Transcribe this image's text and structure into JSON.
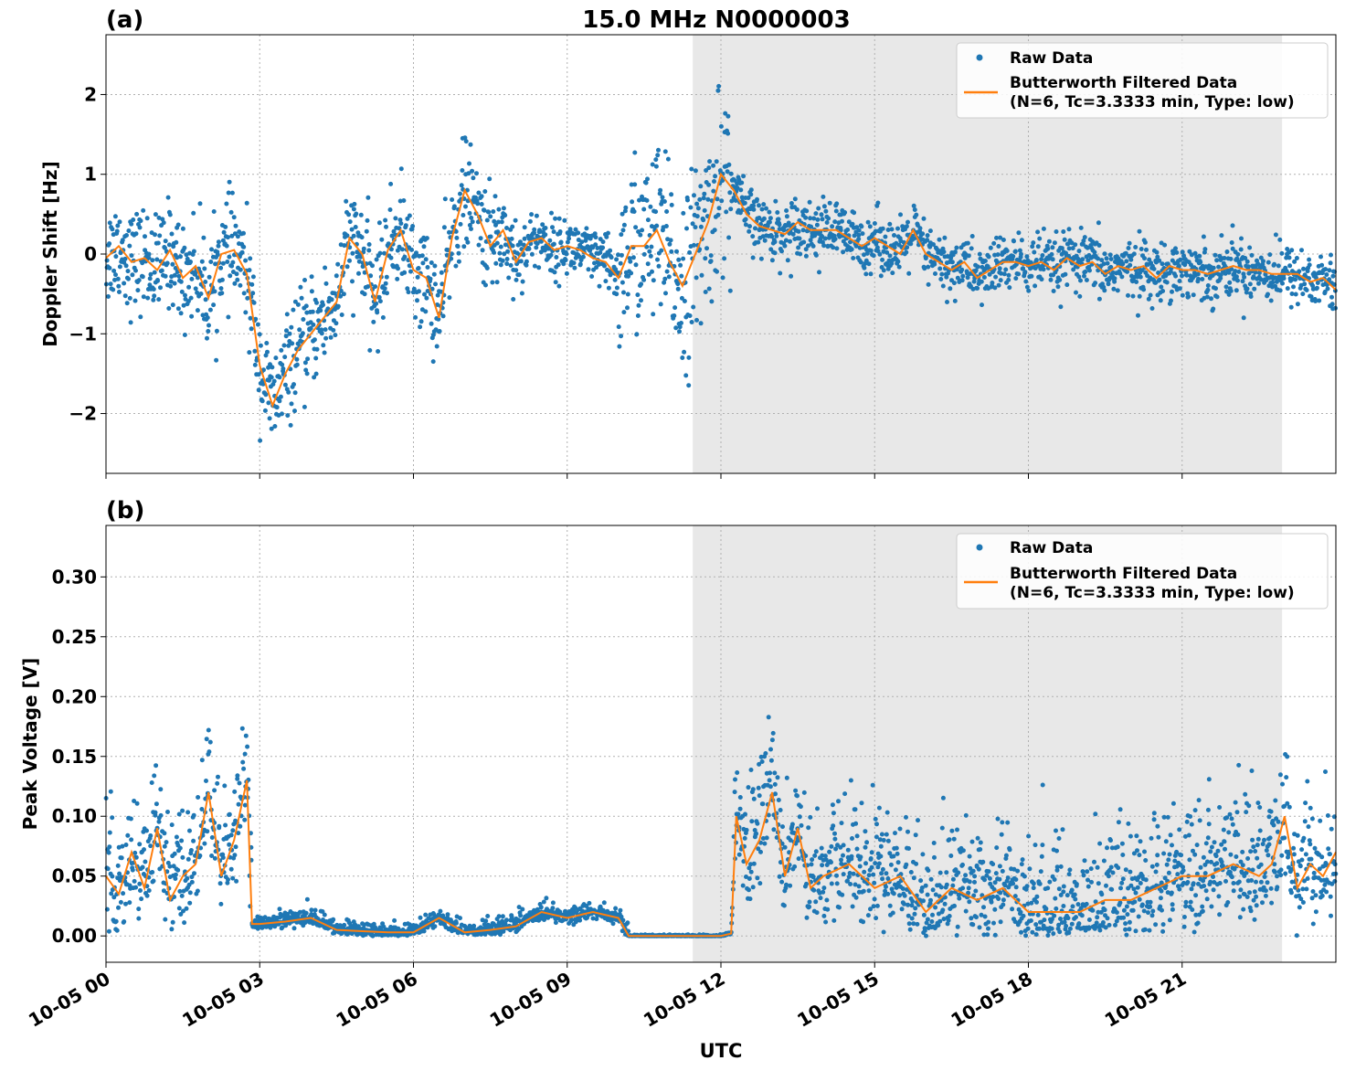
{
  "figure": {
    "title": "15.0 MHz N0000003",
    "xlabel": "UTC",
    "x_ticks": [
      "10-05 00",
      "10-05 03",
      "10-05 06",
      "10-05 09",
      "10-05 12",
      "10-05 15",
      "10-05 18",
      "10-05 21"
    ],
    "x_tick_hours": [
      0,
      3,
      6,
      9,
      12,
      15,
      18,
      21
    ],
    "shaded_region_hours": [
      11.45,
      22.95
    ],
    "colors": {
      "raw": "#1f77b4",
      "filtered": "#ff7f0e",
      "shade": "#e8e8e8",
      "grid": "#b0b0b0"
    }
  },
  "chart_data": [
    {
      "type": "scatter",
      "panel_label": "(a)",
      "ylabel": "Doppler Shift [Hz]",
      "ylim": [
        -2.75,
        2.75
      ],
      "xlim_hours": [
        0,
        24
      ],
      "y_ticks": [
        2,
        1,
        0,
        -1,
        -2
      ],
      "y_tick_labels": [
        "2",
        "1",
        "0",
        "−1",
        "−2"
      ],
      "grid": true,
      "legend": {
        "placement": "top-right",
        "raw_label": "Raw Data",
        "filtered_label_line1": "Butterworth Filtered Data",
        "filtered_label_line2": "(N=6, Tc=3.3333 min, Type: low)"
      },
      "series": [
        {
          "name": "Butterworth Filtered Data",
          "kind": "line",
          "x": [
            0,
            0.25,
            0.5,
            0.75,
            1,
            1.25,
            1.5,
            1.75,
            2,
            2.25,
            2.5,
            2.75,
            3,
            3.25,
            3.5,
            3.75,
            4,
            4.25,
            4.5,
            4.75,
            5,
            5.25,
            5.5,
            5.75,
            6,
            6.25,
            6.5,
            6.75,
            7,
            7.25,
            7.5,
            7.75,
            8,
            8.25,
            8.5,
            8.75,
            9,
            9.25,
            9.5,
            9.75,
            10,
            10.25,
            10.5,
            10.75,
            11,
            11.25,
            11.5,
            11.75,
            12,
            12.25,
            12.5,
            12.75,
            13,
            13.25,
            13.5,
            13.75,
            14,
            14.25,
            14.5,
            14.75,
            15,
            15.25,
            15.5,
            15.75,
            16,
            16.25,
            16.5,
            16.75,
            17,
            17.25,
            17.5,
            17.75,
            18,
            18.25,
            18.5,
            18.75,
            19,
            19.25,
            19.5,
            19.75,
            20,
            20.25,
            20.5,
            20.75,
            21,
            21.25,
            21.5,
            21.75,
            22,
            22.25,
            22.5,
            22.75,
            23,
            23.25,
            23.5,
            23.75,
            24
          ],
          "y": [
            -0.05,
            0.1,
            -0.1,
            -0.05,
            -0.2,
            0.05,
            -0.3,
            -0.15,
            -0.55,
            0.0,
            0.05,
            -0.25,
            -1.4,
            -1.9,
            -1.5,
            -1.2,
            -1.0,
            -0.8,
            -0.6,
            0.2,
            0.0,
            -0.6,
            0.05,
            0.3,
            -0.2,
            -0.3,
            -0.8,
            0.2,
            0.8,
            0.5,
            0.1,
            0.3,
            -0.1,
            0.15,
            0.2,
            0.05,
            0.1,
            0.05,
            -0.05,
            -0.1,
            -0.3,
            0.1,
            0.1,
            0.3,
            -0.1,
            -0.4,
            0.0,
            0.4,
            1.0,
            0.8,
            0.5,
            0.35,
            0.3,
            0.25,
            0.4,
            0.3,
            0.3,
            0.3,
            0.2,
            0.1,
            0.2,
            0.1,
            0.0,
            0.3,
            0.0,
            -0.1,
            -0.2,
            -0.1,
            -0.3,
            -0.2,
            -0.1,
            -0.1,
            -0.15,
            -0.1,
            -0.2,
            -0.05,
            -0.15,
            -0.1,
            -0.25,
            -0.15,
            -0.2,
            -0.15,
            -0.3,
            -0.15,
            -0.2,
            -0.2,
            -0.25,
            -0.2,
            -0.15,
            -0.2,
            -0.2,
            -0.25,
            -0.25,
            -0.25,
            -0.35,
            -0.3,
            -0.45
          ]
        }
      ]
    },
    {
      "type": "scatter",
      "panel_label": "(b)",
      "ylabel": "Peak Voltage [V]",
      "ylim": [
        -0.022,
        0.343
      ],
      "xlim_hours": [
        0,
        24
      ],
      "y_ticks": [
        0.3,
        0.25,
        0.2,
        0.15,
        0.1,
        0.05,
        0.0
      ],
      "y_tick_labels": [
        "0.30",
        "0.25",
        "0.20",
        "0.15",
        "0.10",
        "0.05",
        "0.00"
      ],
      "grid": true,
      "legend": {
        "placement": "top-right",
        "raw_label": "Raw Data",
        "filtered_label_line1": "Butterworth Filtered Data",
        "filtered_label_line2": "(N=6, Tc=3.3333 min, Type: low)"
      },
      "series": [
        {
          "name": "Butterworth Filtered Data",
          "kind": "line",
          "x": [
            0,
            0.25,
            0.5,
            0.75,
            1,
            1.25,
            1.5,
            1.75,
            2,
            2.25,
            2.5,
            2.75,
            2.85,
            3,
            3.5,
            4,
            4.5,
            5,
            5.5,
            6,
            6.5,
            7,
            7.5,
            8,
            8.5,
            9,
            9.5,
            10,
            10.2,
            11,
            12,
            12.2,
            12.3,
            12.5,
            12.75,
            13,
            13.25,
            13.5,
            13.75,
            14,
            14.5,
            15,
            15.5,
            16,
            16.5,
            17,
            17.5,
            18,
            18.5,
            19,
            19.5,
            20,
            20.5,
            21,
            21.5,
            22,
            22.5,
            22.75,
            23,
            23.25,
            23.5,
            23.75,
            24
          ],
          "y": [
            0.05,
            0.035,
            0.07,
            0.04,
            0.09,
            0.03,
            0.05,
            0.06,
            0.12,
            0.05,
            0.08,
            0.13,
            0.01,
            0.01,
            0.012,
            0.015,
            0.005,
            0.004,
            0.003,
            0.003,
            0.015,
            0.003,
            0.005,
            0.008,
            0.02,
            0.015,
            0.02,
            0.015,
            0.0,
            0.0,
            0.0,
            0.002,
            0.1,
            0.06,
            0.08,
            0.12,
            0.05,
            0.09,
            0.04,
            0.05,
            0.06,
            0.04,
            0.05,
            0.02,
            0.04,
            0.03,
            0.04,
            0.02,
            0.02,
            0.02,
            0.03,
            0.03,
            0.04,
            0.05,
            0.05,
            0.06,
            0.05,
            0.06,
            0.1,
            0.04,
            0.06,
            0.05,
            0.07
          ]
        }
      ]
    }
  ]
}
